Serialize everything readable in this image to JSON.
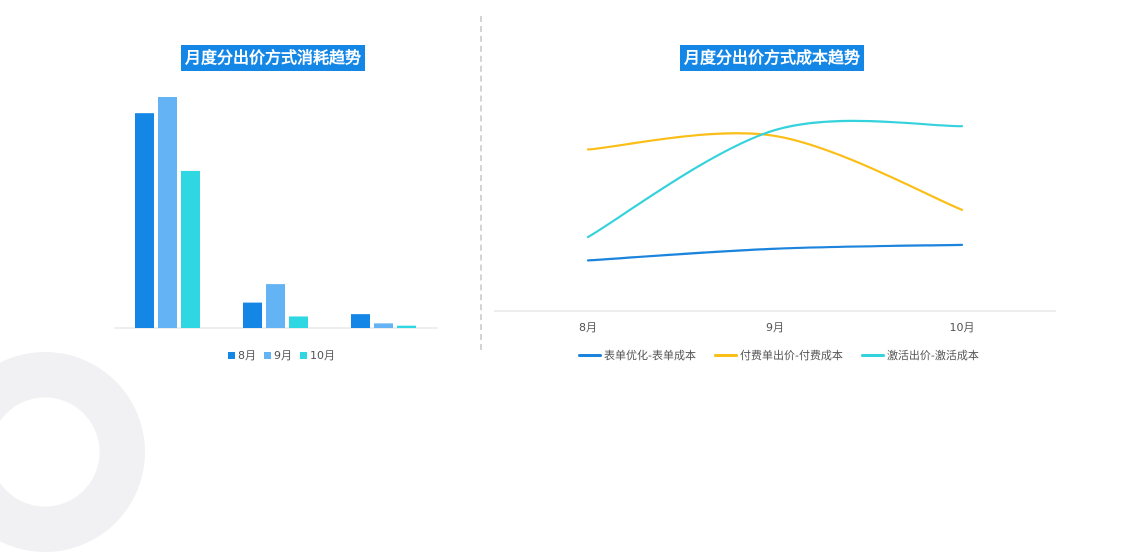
{
  "colors": {
    "title_bg": "#1487e6",
    "aug": "#1487e6",
    "sep": "#63b3f5",
    "oct": "#2fd7e2",
    "form_line": "#1c84dc",
    "paid_line": "#fbbe16",
    "activation_line": "#33d2dc"
  },
  "chart_data": [
    {
      "type": "bar",
      "title": "月度分出价方式消耗趋势",
      "categories": [
        "",
        "",
        ""
      ],
      "series": [
        {
          "name": "8月",
          "values": [
            93,
            11,
            6
          ]
        },
        {
          "name": "9月",
          "values": [
            100,
            19,
            2
          ]
        },
        {
          "name": "10月",
          "values": [
            68,
            5,
            1
          ]
        }
      ],
      "ylim": [
        0,
        100
      ],
      "grid": false,
      "legend": "bottom"
    },
    {
      "type": "line",
      "title": "月度分出价方式成本趋势",
      "x": [
        "8月",
        "9月",
        "10月"
      ],
      "series": [
        {
          "name": "表单优化-表单成本",
          "values": [
            26,
            32,
            34
          ]
        },
        {
          "name": "付费单出价-付费成本",
          "values": [
            83,
            90,
            52
          ]
        },
        {
          "name": "激活出价-激活成本",
          "values": [
            38,
            93,
            95
          ]
        }
      ],
      "ylim": [
        0,
        110
      ],
      "grid": false,
      "legend": "bottom"
    }
  ]
}
